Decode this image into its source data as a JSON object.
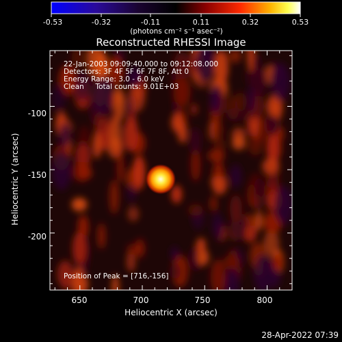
{
  "colorbar": {
    "tick_labels": [
      "-0.53",
      "-0.32",
      "-0.11",
      "0.11",
      "0.32",
      "0.53"
    ],
    "units": "(photons cm⁻² s⁻¹ asec⁻²)",
    "min": -0.53,
    "max": 0.53,
    "colors": [
      "#0000ff",
      "#000000",
      "#ff0000",
      "#ffff00",
      "#ffffff"
    ]
  },
  "plot": {
    "title": "Reconstructed RHESSI Image",
    "info_lines": [
      "22-Jan-2003 09:09:40.000 to 09:12:08.000",
      "Detectors: 3F 4F 5F 6F 7F 8F, Att 0",
      "Energy Range: 3.0 - 6.0 keV",
      "Clean     Total counts: 9.01E+03"
    ],
    "peak_label": "Position of Peak = [716,-156]",
    "xlabel": "Heliocentric X (arcsec)",
    "ylabel": "Heliocentric Y (arcsec)",
    "x_ticks": [
      "650",
      "700",
      "750",
      "800"
    ],
    "y_ticks": [
      "-100",
      "-150",
      "-200"
    ]
  },
  "timestamp": "28-Apr-2022 07:39",
  "chart_data": {
    "type": "heatmap",
    "title": "Reconstructed RHESSI Image",
    "xlabel": "Heliocentric X (arcsec)",
    "ylabel": "Heliocentric Y (arcsec)",
    "xlim": [
      626,
      820
    ],
    "ylim": [
      -245,
      -56
    ],
    "x_ticks": [
      650,
      700,
      750,
      800
    ],
    "y_ticks": [
      -100,
      -150,
      -200
    ],
    "peak": {
      "x": 716,
      "y": -156
    },
    "colorbar_range": [
      -0.53,
      0.53
    ],
    "colorbar_unit": "photons cm-2 s-1 asec-2"
  }
}
